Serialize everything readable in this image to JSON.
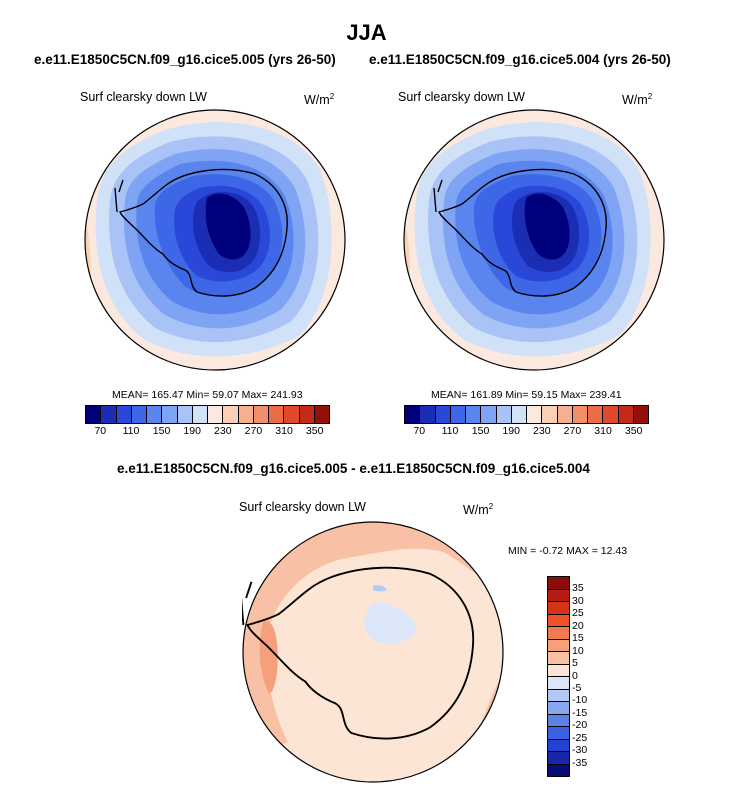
{
  "header": {
    "season": "JJA",
    "case1_title": "e.e11.E1850C5CN.f09_g16.cice5.005 (yrs 26-50)",
    "case2_title": "e.e11.E1850C5CN.f09_g16.cice5.004 (yrs 26-50)",
    "diff_title": "e.e11.E1850C5CN.f09_g16.cice5.005 - e.e11.E1850C5CN.f09_g16.cice5.004"
  },
  "panels": {
    "left": {
      "variable": "Surf clearsky down LW",
      "units_base": "W/m",
      "units_exp": "2",
      "stats": "MEAN= 165.47  Min=  59.07  Max= 241.93"
    },
    "right": {
      "variable": "Surf clearsky down LW",
      "units_base": "W/m",
      "units_exp": "2",
      "stats": "MEAN= 161.89  Min=  59.15  Max= 239.41"
    },
    "diff": {
      "variable": "Surf clearsky down LW",
      "units_base": "W/m",
      "units_exp": "2",
      "stats": "MIN =  -0.72 MAX =  12.43"
    }
  },
  "colorbar_abs": {
    "colors": [
      "#00007d",
      "#1a2db3",
      "#2948d9",
      "#3d67e6",
      "#5a85ef",
      "#7fa4f4",
      "#a9c3f6",
      "#d0e1f8",
      "#fbe9df",
      "#f9cfb7",
      "#f6b08f",
      "#f28f6a",
      "#ec6c48",
      "#e04a2b",
      "#c42a18",
      "#94100b"
    ],
    "labels": [
      "70",
      "110",
      "150",
      "190",
      "230",
      "270",
      "310",
      "350"
    ]
  },
  "colorbar_diff": {
    "colors": [
      "#8c0b0b",
      "#b71c12",
      "#d73417",
      "#ee5226",
      "#f17a4f",
      "#f5a07b",
      "#f8c1a5",
      "#fde5d5",
      "#dbe7f9",
      "#b3cbf4",
      "#87a7ee",
      "#5c82e8",
      "#3b61e0",
      "#2442d4",
      "#1a26a8",
      "#090b7a"
    ],
    "labels": [
      "35",
      "30",
      "25",
      "20",
      "15",
      "10",
      "5",
      "0",
      "-5",
      "-10",
      "-15",
      "-20",
      "-25",
      "-30",
      "-35"
    ]
  },
  "map_layers": {
    "abs_contours": [
      "#fbe9df",
      "#f9cfb7",
      "#fbe9df",
      "#d0e1f8",
      "#a9c3f6",
      "#7fa4f4",
      "#5a85ef",
      "#3d67e6",
      "#2948d9",
      "#1a2db3",
      "#00007d"
    ],
    "diff_colors": [
      "#f5a07b",
      "#f8c1a5",
      "#fde5d5",
      "#dbe7f9"
    ],
    "land_outline": "#000000"
  }
}
